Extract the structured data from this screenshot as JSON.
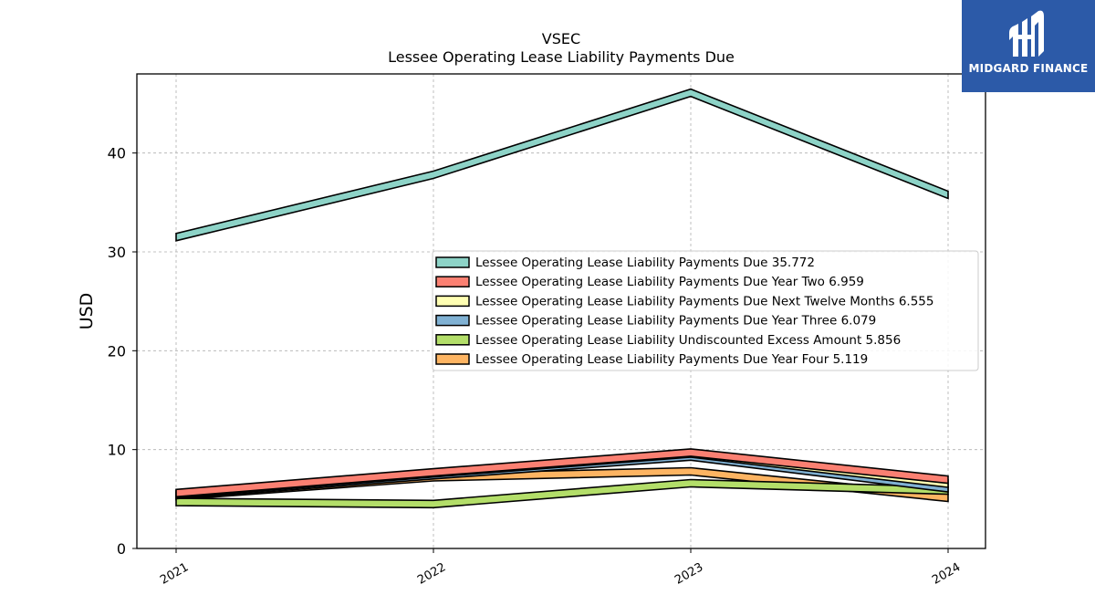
{
  "logo": {
    "text": "MIDGARD FINANCE",
    "background": "#2c5aa8"
  },
  "chart_data": {
    "type": "area",
    "title": "VSEC",
    "subtitle": "Lessee Operating Lease Liability Payments Due",
    "xlabel": "",
    "ylabel": "USD",
    "categories": [
      "2021",
      "2022",
      "2023",
      "2024"
    ],
    "ylim": [
      0,
      48
    ],
    "yticks": [
      0,
      10,
      20,
      30,
      40
    ],
    "grid": true,
    "legend_position": "center-right",
    "series": [
      {
        "name": "Lessee Operating Lease Liability Payments Due",
        "legend_value": "35.772",
        "color": "#8dd3c7",
        "values": [
          31.5,
          37.8,
          46.1,
          35.772
        ]
      },
      {
        "name": "Lessee Operating Lease Liability Payments Due Year Two",
        "legend_value": "6.959",
        "color": "#fb8072",
        "values": [
          5.6,
          7.7,
          9.7,
          6.959
        ]
      },
      {
        "name": "Lessee Operating Lease Liability Payments Due Next Twelve Months",
        "legend_value": "6.555",
        "color": "#ffffb3",
        "values": [
          5.5,
          7.6,
          9.6,
          6.555
        ]
      },
      {
        "name": "Lessee Operating Lease Liability Payments Due Year Three",
        "legend_value": "6.079",
        "color": "#80b1d3",
        "values": [
          5.4,
          7.4,
          9.3,
          6.079
        ]
      },
      {
        "name": "Lessee Operating Lease Liability Undiscounted Excess Amount",
        "legend_value": "5.856",
        "color": "#b3de69",
        "values": [
          4.7,
          4.5,
          6.6,
          5.856
        ]
      },
      {
        "name": "Lessee Operating Lease Liability Payments Due Year Four",
        "legend_value": "5.119",
        "color": "#fdb462",
        "values": [
          5.3,
          7.2,
          7.8,
          5.119
        ]
      }
    ]
  }
}
